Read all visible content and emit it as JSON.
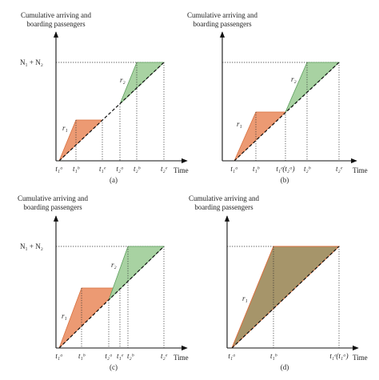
{
  "colors": {
    "orange_fill": "#ec9a73",
    "orange_stroke": "#d8703f",
    "green_fill": "#a8d2a2",
    "green_stroke": "#5e9e5e",
    "olive_fill": "#a6956a"
  },
  "yaxis_label": [
    "Cumulative arriving and",
    "boarding passengers"
  ],
  "time_label": "Time",
  "n_label": "N₁ + N₂",
  "r1": "r₁",
  "r2": "r₂",
  "ticks": {
    "t1a": "t₁ᵃ",
    "t1b": "t₁ᵇ",
    "t1e": "t₁ᵉ",
    "t2a": "t₂ᵃ",
    "t2b": "t₂ᵇ",
    "t2e": "t₂ᵉ",
    "t1e_t2a": "t₁ᵉ(t₂ᵃ)",
    "t1e_t1a": "t₁ᵉ(t₁ᵃ)"
  },
  "captions": {
    "a": "(a)",
    "b": "(b)",
    "c": "(c)",
    "d": "(d)"
  }
}
